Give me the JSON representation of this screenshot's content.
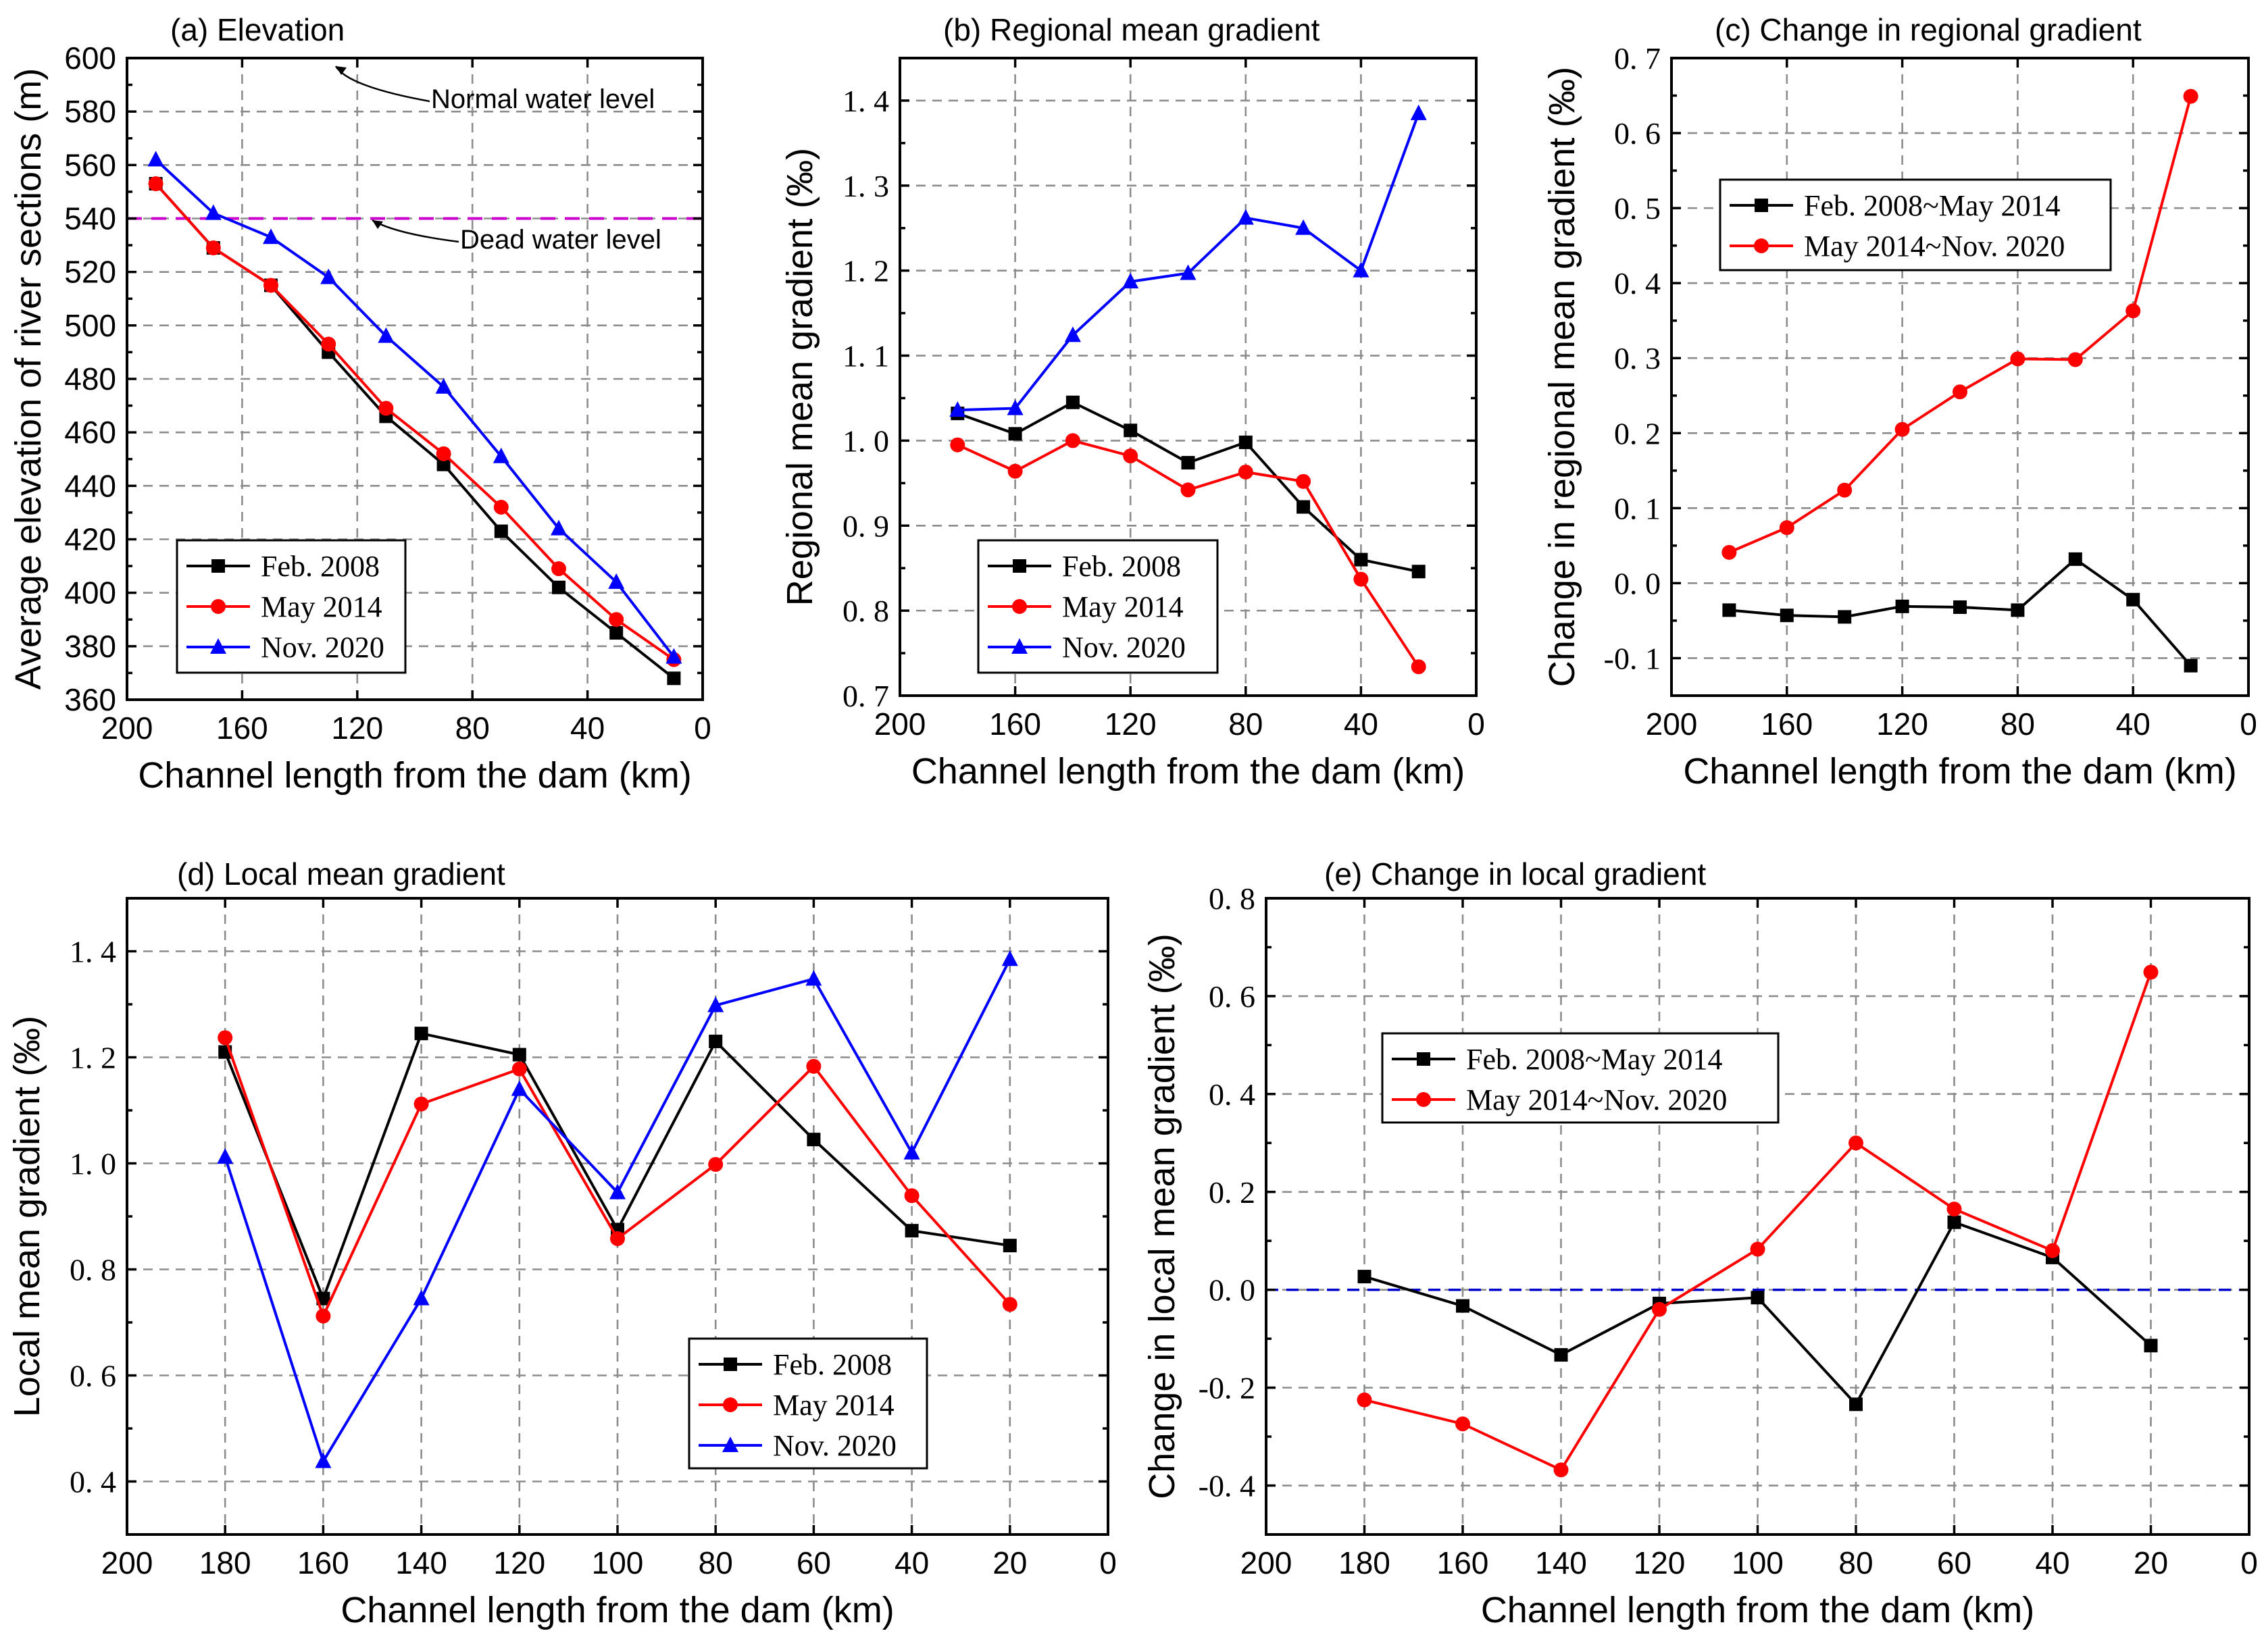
{
  "colors": {
    "feb2008": "#000000",
    "may2014": "#ff0000",
    "nov2020": "#0000ff",
    "level": "#cc00cc",
    "zero": "#0000cc"
  },
  "chart_data": [
    {
      "id": "a",
      "type": "line",
      "title": "(a)  Elevation",
      "xlabel": "Channel length from the dam (km)",
      "ylabel": "Average elevation of river sections (m)",
      "xlim": [
        200,
        0
      ],
      "ylim": [
        360,
        600
      ],
      "xticks": [
        200,
        160,
        120,
        80,
        40,
        0
      ],
      "yticks": [
        360,
        380,
        400,
        420,
        440,
        460,
        480,
        500,
        520,
        540,
        560,
        580,
        600
      ],
      "ytick_labels": [
        "360",
        "380",
        "400",
        "420",
        "440",
        "460",
        "480",
        "500",
        "520",
        "540",
        "560",
        "580",
        "600"
      ],
      "x": [
        190,
        170,
        150,
        130,
        110,
        90,
        70,
        50,
        30,
        10
      ],
      "series": [
        {
          "name": "Feb. 2008",
          "color_key": "feb2008",
          "marker": "square",
          "values": [
            553,
            529,
            515,
            490,
            466,
            448,
            423,
            402,
            385,
            368
          ]
        },
        {
          "name": "May 2014",
          "color_key": "may2014",
          "marker": "circle",
          "values": [
            553,
            529,
            515,
            493,
            469,
            452,
            432,
            409,
            390,
            375
          ]
        },
        {
          "name": "Nov. 2020",
          "color_key": "nov2020",
          "marker": "triangle",
          "values": [
            562,
            542,
            533,
            518,
            496,
            477,
            451,
            424,
            404,
            376
          ]
        }
      ],
      "reference_lines": [
        {
          "value": 600,
          "label": "Normal water level"
        },
        {
          "value": 540,
          "label": "Dead water level"
        }
      ],
      "legend_position": "bottom-left"
    },
    {
      "id": "b",
      "type": "line",
      "title": "(b)  Regional mean gradient",
      "xlabel": "Channel length from the dam (km)",
      "ylabel": "Regional mean gradient (‰)",
      "xlim": [
        200,
        0
      ],
      "ylim": [
        0.7,
        1.45
      ],
      "xticks": [
        200,
        160,
        120,
        80,
        40,
        0
      ],
      "yticks": [
        0.7,
        0.8,
        0.9,
        1.0,
        1.1,
        1.2,
        1.3,
        1.4
      ],
      "ytick_labels": [
        "0. 7",
        "0. 8",
        "0. 9",
        "1. 0",
        "1. 1",
        "1. 2",
        "1. 3",
        "1. 4"
      ],
      "x": [
        180,
        160,
        140,
        120,
        100,
        80,
        60,
        40,
        20
      ],
      "series": [
        {
          "name": "Feb. 2008",
          "color_key": "feb2008",
          "marker": "square",
          "values": [
            1.032,
            1.008,
            1.045,
            1.012,
            0.974,
            0.998,
            0.922,
            0.86,
            0.846
          ]
        },
        {
          "name": "May 2014",
          "color_key": "may2014",
          "marker": "circle",
          "values": [
            0.995,
            0.964,
            1.0,
            0.982,
            0.942,
            0.963,
            0.952,
            0.837,
            0.734
          ]
        },
        {
          "name": "Nov. 2020",
          "color_key": "nov2020",
          "marker": "triangle",
          "values": [
            1.036,
            1.038,
            1.124,
            1.187,
            1.197,
            1.262,
            1.25,
            1.2,
            1.385
          ]
        }
      ],
      "legend_position": "bottom-center"
    },
    {
      "id": "c",
      "type": "line",
      "title": "(c)  Change in regional  gradient",
      "xlabel": "Channel length from the dam (km)",
      "ylabel": "Change in regional mean gradient (‰)",
      "xlim": [
        200,
        0
      ],
      "ylim": [
        -0.15,
        0.7
      ],
      "xticks": [
        200,
        160,
        120,
        80,
        40,
        0
      ],
      "yticks": [
        -0.1,
        0.0,
        0.1,
        0.2,
        0.3,
        0.4,
        0.5,
        0.6,
        0.7
      ],
      "ytick_labels": [
        "-0. 1",
        "0. 0",
        "0. 1",
        "0. 2",
        "0. 3",
        "0. 4",
        "0. 5",
        "0. 6",
        "0. 7"
      ],
      "x": [
        180,
        160,
        140,
        120,
        100,
        80,
        60,
        40,
        20
      ],
      "series": [
        {
          "name": "Feb. 2008~May 2014",
          "color_key": "feb2008",
          "marker": "square",
          "values": [
            -0.036,
            -0.043,
            -0.045,
            -0.031,
            -0.032,
            -0.036,
            0.032,
            -0.022,
            -0.11
          ]
        },
        {
          "name": "May 2014~Nov. 2020",
          "color_key": "may2014",
          "marker": "circle",
          "values": [
            0.041,
            0.074,
            0.124,
            0.205,
            0.255,
            0.299,
            0.298,
            0.363,
            0.649
          ]
        }
      ],
      "legend_position": "top-left"
    },
    {
      "id": "d",
      "type": "line",
      "title": "(d)  Local mean gradient",
      "xlabel": "Channel length from the dam (km)",
      "ylabel": "Local mean gradient (‰)",
      "xlim": [
        200,
        0
      ],
      "ylim": [
        0.3,
        1.5
      ],
      "xticks": [
        200,
        180,
        160,
        140,
        120,
        100,
        80,
        60,
        40,
        20,
        0
      ],
      "yticks": [
        0.4,
        0.6,
        0.8,
        1.0,
        1.2,
        1.4
      ],
      "ytick_labels": [
        "0. 4",
        "0. 6",
        "0. 8",
        "1. 0",
        "1. 2",
        "1. 4"
      ],
      "x": [
        180,
        160,
        140,
        120,
        100,
        80,
        60,
        40,
        20
      ],
      "series": [
        {
          "name": "Feb. 2008",
          "color_key": "feb2008",
          "marker": "square",
          "values": [
            1.21,
            0.745,
            1.245,
            1.205,
            0.875,
            1.23,
            1.045,
            0.873,
            0.845
          ]
        },
        {
          "name": "May 2014",
          "color_key": "may2014",
          "marker": "circle",
          "values": [
            1.237,
            0.712,
            1.112,
            1.178,
            0.858,
            0.998,
            1.183,
            0.939,
            0.734
          ]
        },
        {
          "name": "Nov. 2020",
          "color_key": "nov2020",
          "marker": "triangle",
          "values": [
            1.012,
            0.438,
            0.745,
            1.14,
            0.945,
            1.298,
            1.348,
            1.02,
            1.385
          ]
        }
      ],
      "legend_position": "bottom-right"
    },
    {
      "id": "e",
      "type": "line",
      "title": "(e)  Change in local  gradient",
      "xlabel": "Channel length from the dam (km)",
      "ylabel": "Change in local mean gradient (‰)",
      "xlim": [
        200,
        0
      ],
      "ylim": [
        -0.5,
        0.8
      ],
      "xticks": [
        200,
        180,
        160,
        140,
        120,
        100,
        80,
        60,
        40,
        20,
        0
      ],
      "yticks": [
        -0.4,
        -0.2,
        0.0,
        0.2,
        0.4,
        0.6,
        0.8
      ],
      "ytick_labels": [
        "-0. 4",
        "-0. 2",
        "0. 0",
        "0. 2",
        "0. 4",
        "0. 6",
        "0. 8"
      ],
      "x": [
        180,
        160,
        140,
        120,
        100,
        80,
        60,
        40,
        20
      ],
      "series": [
        {
          "name": "Feb. 2008~May 2014",
          "color_key": "feb2008",
          "marker": "square",
          "values": [
            0.027,
            -0.033,
            -0.133,
            -0.028,
            -0.016,
            -0.234,
            0.138,
            0.066,
            -0.114
          ]
        },
        {
          "name": "May 2014~Nov. 2020",
          "color_key": "may2014",
          "marker": "circle",
          "values": [
            -0.225,
            -0.274,
            -0.368,
            -0.04,
            0.083,
            0.3,
            0.165,
            0.08,
            0.649
          ]
        }
      ],
      "zero_line": 0.0,
      "legend_position": "top-left"
    }
  ]
}
